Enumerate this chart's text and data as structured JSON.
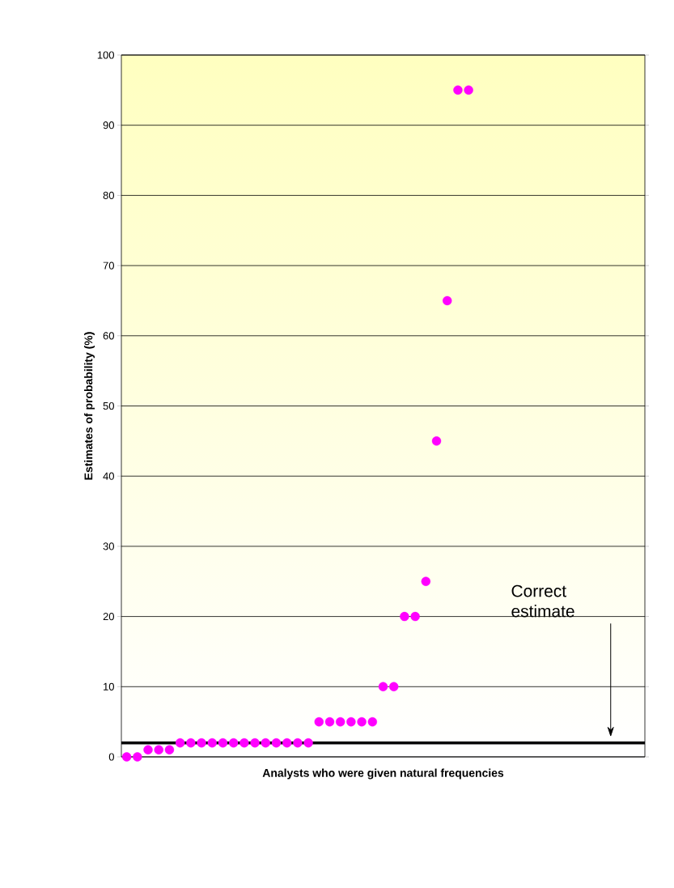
{
  "chart_data": {
    "type": "scatter",
    "xlabel": "Analysts who were given natural frequencies",
    "ylabel": "Estimates of probability (%)",
    "categories": [
      null,
      null,
      null,
      null,
      null,
      null,
      null,
      null,
      null,
      null,
      null,
      null,
      null,
      null,
      null,
      null,
      null,
      null,
      null,
      null,
      null,
      null,
      null,
      null,
      null,
      null,
      null,
      null,
      null,
      null,
      null,
      null,
      null,
      null,
      null,
      null,
      null,
      null,
      null,
      null,
      null,
      null,
      null,
      null,
      null,
      null,
      null,
      null,
      null
    ],
    "values": [
      0,
      0,
      1,
      1,
      1,
      2,
      2,
      2,
      2,
      2,
      2,
      2,
      2,
      2,
      2,
      2,
      2,
      2,
      5,
      5,
      5,
      5,
      5,
      5,
      10,
      10,
      20,
      20,
      25,
      45,
      65,
      95,
      95,
      null,
      null,
      null,
      null,
      null,
      null,
      null,
      null,
      null,
      null,
      null,
      null,
      null,
      null,
      null,
      null
    ],
    "color": "#ff00ff",
    "marker": "circle",
    "ylim": [
      0,
      100
    ],
    "yticks": [
      0,
      10,
      20,
      30,
      40,
      50,
      60,
      70,
      80,
      90,
      100
    ],
    "grid": "y",
    "ref_lines": [
      {
        "axis": "y",
        "value": 2,
        "label": "Correct estimate",
        "color": "#000000"
      }
    ]
  }
}
